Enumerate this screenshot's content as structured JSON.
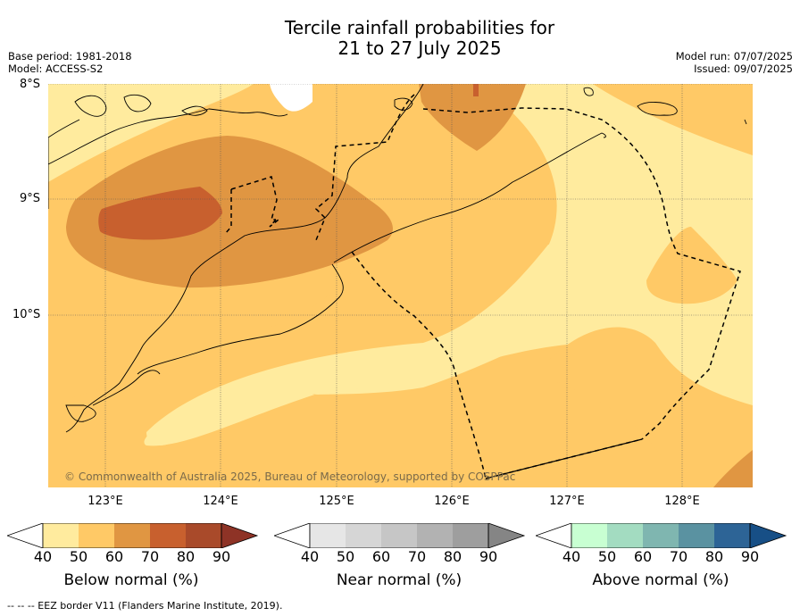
{
  "title_line1": "Tercile rainfall probabilities for",
  "title_line2": "21 to 27 July 2025",
  "base_period": "Base period: 1981-2018",
  "model": "Model: ACCESS-S2",
  "model_run": "Model run: 07/07/2025",
  "issued": "Issued: 09/07/2025",
  "lat_labels": [
    "8°S",
    "9°S",
    "10°S"
  ],
  "lon_labels": [
    "123°E",
    "124°E",
    "125°E",
    "126°E",
    "127°E",
    "128°E"
  ],
  "copyright": "© Commonwealth of Australia 2025, Bureau of Meteorology, supported by COSPPac",
  "colorbars": [
    {
      "label": "Below normal (%)",
      "ticks": [
        "40",
        "50",
        "60",
        "70",
        "80",
        "90"
      ],
      "colors": [
        "#ffeb9e",
        "#ffc966",
        "#e09642",
        "#c8602e",
        "#a94a2a",
        "#8e3326"
      ]
    },
    {
      "label": "Near normal (%)",
      "ticks": [
        "40",
        "50",
        "60",
        "70",
        "80",
        "90"
      ],
      "colors": [
        "#e6e6e6",
        "#d6d6d6",
        "#c6c6c6",
        "#b2b2b2",
        "#9e9e9e",
        "#858585"
      ]
    },
    {
      "label": "Above normal (%)",
      "ticks": [
        "40",
        "50",
        "60",
        "70",
        "80",
        "90"
      ],
      "colors": [
        "#c8ffd2",
        "#a3dcc1",
        "#7fb6b0",
        "#5a92a1",
        "#2d6496",
        "#174f86"
      ]
    }
  ],
  "footer": "--  --  -- EEZ border V11 (Flanders Marine Institute, 2019)."
}
